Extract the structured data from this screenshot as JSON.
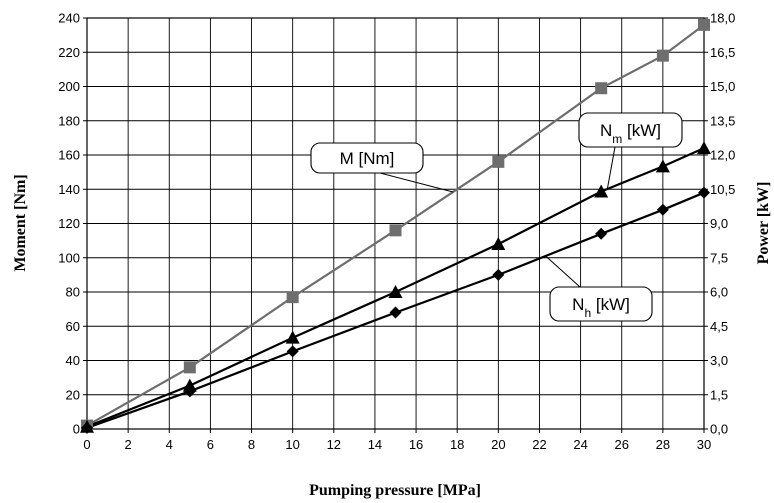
{
  "chart_data": {
    "type": "line",
    "xlabel": "Pumping pressure [MPa]",
    "ylabel_left": "Moment [Nm]",
    "ylabel_right": "Power [kW]",
    "xlim": [
      0,
      30
    ],
    "ylim_left": [
      0,
      240
    ],
    "ylim_right": [
      0,
      18
    ],
    "x_ticks": [
      "0",
      "2",
      "4",
      "6",
      "8",
      "10",
      "12",
      "14",
      "16",
      "18",
      "20",
      "22",
      "24",
      "26",
      "28",
      "30"
    ],
    "y_ticks_left": [
      "0",
      "20",
      "40",
      "60",
      "80",
      "100",
      "120",
      "140",
      "160",
      "180",
      "200",
      "220",
      "240"
    ],
    "y_ticks_right": [
      "0,0",
      "1,5",
      "3,0",
      "4,5",
      "6,0",
      "7,5",
      "9,0",
      "10,5",
      "12,0",
      "13,5",
      "15,0",
      "16,5",
      "18,0"
    ],
    "grid": true,
    "series": [
      {
        "name": "M [Nm]",
        "axis": "left",
        "marker": "square",
        "color": "#6e6e6e",
        "x": [
          0,
          5,
          10,
          15,
          20,
          25,
          28,
          30
        ],
        "y": [
          2,
          36,
          77,
          116,
          156,
          199,
          218,
          236
        ]
      },
      {
        "name": "Nm [kW]",
        "label_main": "N",
        "label_sub": "m",
        "label_unit": " [kW]",
        "axis": "right",
        "marker": "triangle",
        "color": "#000000",
        "x": [
          0,
          5,
          10,
          15,
          20,
          25,
          28,
          30
        ],
        "y": [
          0.1,
          1.9,
          4.0,
          6.0,
          8.1,
          10.4,
          11.5,
          12.3
        ]
      },
      {
        "name": "Nh [kW]",
        "label_main": "N",
        "label_sub": "h",
        "label_unit": " [kW]",
        "axis": "right",
        "marker": "diamond",
        "color": "#000000",
        "x": [
          0,
          5,
          10,
          15,
          20,
          25,
          28,
          30
        ],
        "y": [
          0.05,
          1.65,
          3.4,
          5.1,
          6.75,
          8.55,
          9.6,
          10.35
        ]
      }
    ]
  }
}
